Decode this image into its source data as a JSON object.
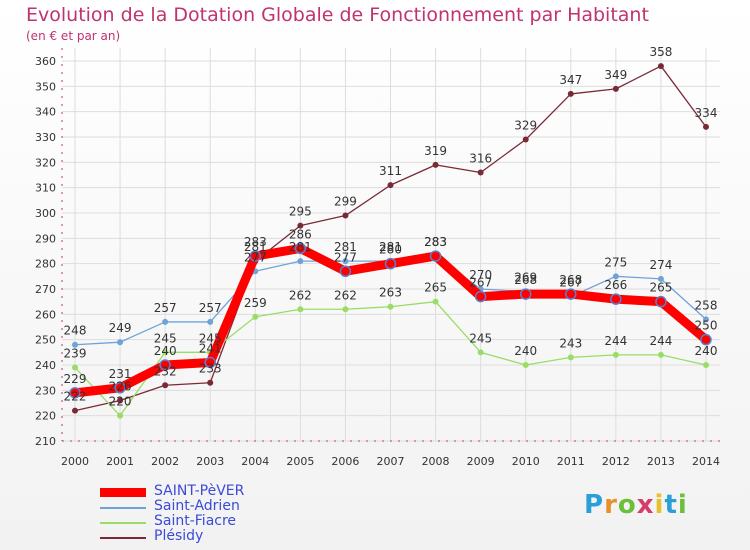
{
  "chart_data": {
    "type": "line",
    "title": "Evolution de la Dotation Globale de Fonctionnement par Habitant",
    "subtitle": "(en € et par an)",
    "xlabel": "",
    "ylabel": "",
    "x": [
      "2000",
      "2001",
      "2002",
      "2003",
      "2004",
      "2005",
      "2006",
      "2007",
      "2008",
      "2009",
      "2010",
      "2011",
      "2012",
      "2013",
      "2014"
    ],
    "ylim": [
      210,
      360
    ],
    "yticks": [
      210,
      220,
      230,
      240,
      250,
      260,
      270,
      280,
      290,
      300,
      310,
      320,
      330,
      340,
      350,
      360
    ],
    "grid": true,
    "legend": "bottom-left",
    "series": [
      {
        "name": "SAINT-PèVER",
        "color": "#ff0000",
        "values": [
          229,
          231,
          240,
          241,
          283,
          286,
          277,
          280,
          283,
          267,
          268,
          268,
          266,
          265,
          250
        ]
      },
      {
        "name": "Saint-Adrien",
        "color": "#6fa3d8",
        "values": [
          248,
          249,
          257,
          257,
          277,
          281,
          281,
          281,
          283,
          270,
          269,
          267,
          275,
          274,
          258
        ]
      },
      {
        "name": "Saint-Fiacre",
        "color": "#99dd66",
        "values": [
          239,
          220,
          245,
          245,
          259,
          262,
          262,
          263,
          265,
          245,
          240,
          243,
          244,
          244,
          240
        ]
      },
      {
        "name": "Plésidy",
        "color": "#7a2a35",
        "values": [
          222,
          226,
          232,
          233,
          281,
          295,
          299,
          311,
          319,
          316,
          329,
          347,
          349,
          358,
          334
        ]
      }
    ]
  },
  "logo": {
    "letters": [
      "P",
      "r",
      "o",
      "x",
      "i",
      "t",
      "i"
    ]
  }
}
